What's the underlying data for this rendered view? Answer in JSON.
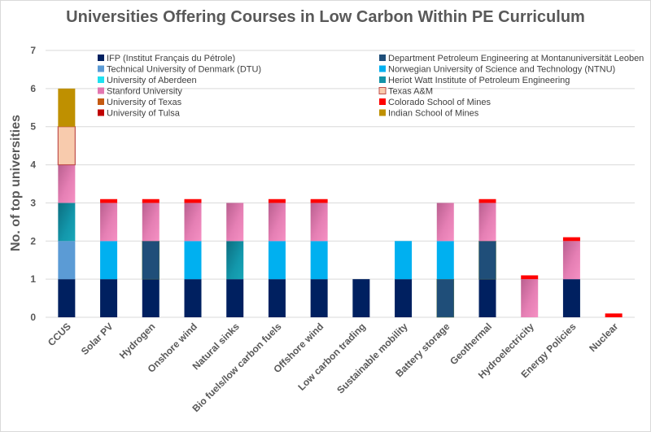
{
  "chart_data": {
    "type": "bar",
    "stacked": true,
    "title": "Universities Offering Courses in Low Carbon Within PE Curriculum",
    "xlabel": "",
    "ylabel": "No. of top universities",
    "ylim": [
      0,
      7
    ],
    "yticks": [
      0,
      1,
      2,
      3,
      4,
      5,
      6,
      7
    ],
    "grid": true,
    "legend_position": "top",
    "categories": [
      "CCUS",
      "Solar PV",
      "Hydrogen",
      "Onshore wind",
      "Natural sinks",
      "Bio fuels/low carbon fuels",
      "Offshore wind",
      "Low carbon trading",
      "Sustainable mobility",
      "Battery storage",
      "Geothermal",
      "Hydroelectricity",
      "Energy Policies",
      "Nuclear"
    ],
    "series": [
      {
        "name": "IFP (Institut Français du Pétrole)",
        "color": "#002060",
        "values": [
          1,
          1,
          1,
          1,
          1,
          1,
          1,
          1,
          1,
          0,
          1,
          0,
          1,
          0
        ]
      },
      {
        "name": "Department Petroleum Engineering at Montanuniversität Leoben",
        "color": "#1f4e79",
        "values": [
          0,
          0,
          1,
          0,
          0,
          0,
          0,
          0,
          0,
          1,
          1,
          0,
          0,
          0
        ]
      },
      {
        "name": "Technical University of Denmark (DTU)",
        "color": "#5b9bd5",
        "values": [
          1,
          0,
          0,
          0,
          0,
          0,
          0,
          0,
          0,
          0,
          0,
          0,
          0,
          0
        ]
      },
      {
        "name": "Norwegian University of Science and Technology (NTNU)",
        "color": "#00b0f0",
        "values": [
          0,
          1,
          0,
          1,
          0,
          1,
          1,
          0,
          1,
          1,
          0,
          0,
          0,
          0
        ]
      },
      {
        "name": "University of Aberdeen",
        "color": "#1ee1f0",
        "values": [
          0,
          0,
          0,
          0,
          0,
          0,
          0,
          0,
          0,
          0,
          0,
          0,
          0,
          0
        ]
      },
      {
        "name": "Heriot Watt Institute of Petroleum Engineering",
        "color": "#1393a8",
        "values": [
          1,
          0,
          0,
          0,
          1,
          0,
          0,
          0,
          0,
          0,
          0,
          0,
          0,
          0
        ]
      },
      {
        "name": "Stanford University",
        "color": "#e377b0",
        "values": [
          1,
          1,
          1,
          1,
          1,
          1,
          1,
          0,
          0,
          1,
          1,
          1,
          1,
          0
        ]
      },
      {
        "name": "Texas A&M",
        "color": "#f8cbad",
        "values": [
          1,
          0,
          0,
          0,
          0,
          0,
          0,
          0,
          0,
          0,
          0,
          0,
          0,
          0
        ]
      },
      {
        "name": "University of Texas",
        "color": "#c55a11",
        "values": [
          0,
          0,
          0,
          0,
          0,
          0,
          0,
          0,
          0,
          0,
          0,
          0,
          0,
          0
        ]
      },
      {
        "name": "Colorado School of Mines",
        "color": "#ff0000",
        "values": [
          0,
          0.1,
          0.1,
          0.1,
          0,
          0.1,
          0.1,
          0,
          0,
          0,
          0.1,
          0.1,
          0.1,
          0.1
        ]
      },
      {
        "name": "University of Tulsa",
        "color": "#c00000",
        "values": [
          0,
          0,
          0,
          0,
          0,
          0,
          0,
          0,
          0,
          0,
          0,
          0,
          0,
          0
        ]
      },
      {
        "name": "Indian School of Mines",
        "color": "#bf9000",
        "values": [
          1,
          0,
          0,
          0,
          0,
          0,
          0,
          0,
          0,
          0,
          0,
          0,
          0,
          0
        ]
      }
    ],
    "legend": {
      "left_column": [
        "IFP (Institut Français du Pétrole)",
        "Technical University of Denmark (DTU)",
        "University of Aberdeen",
        "Stanford University",
        "University of Texas",
        "University of Tulsa"
      ],
      "right_column": [
        "Department Petroleum Engineering at Montanuniversität Leoben",
        "Norwegian University of Science and Technology (NTNU)",
        "Heriot Watt Institute of Petroleum Engineering",
        "Texas A&M",
        "Colorado School of Mines",
        "Indian School of Mines"
      ]
    }
  }
}
